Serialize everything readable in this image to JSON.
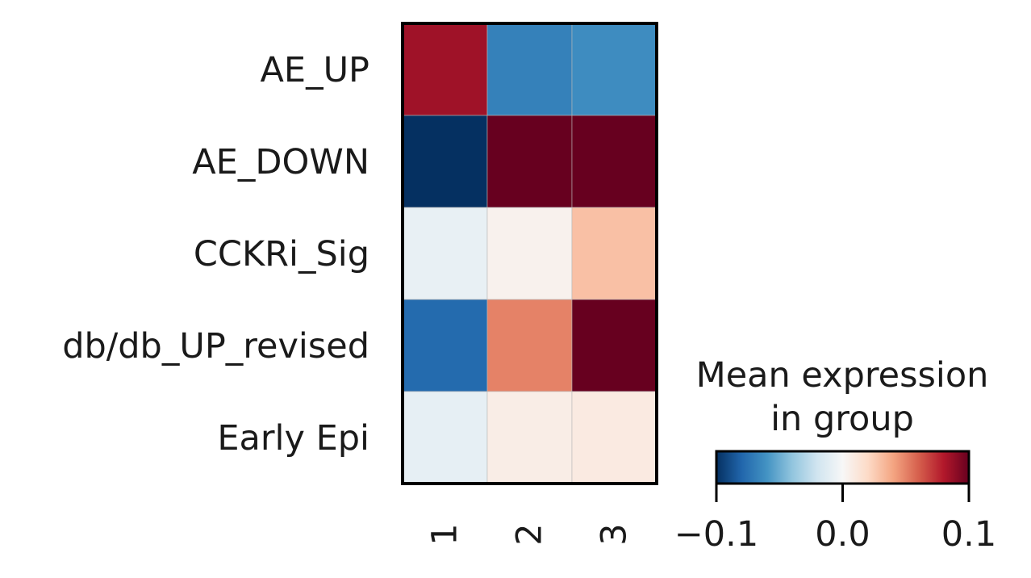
{
  "chart_data": {
    "type": "heatmap",
    "rows": [
      "AE_UP",
      "AE_DOWN",
      "CCKRi_Sig",
      "db/db_UP_revised",
      "Early Epi"
    ],
    "columns": [
      "1",
      "2",
      "3"
    ],
    "values": [
      [
        0.085,
        -0.068,
        -0.063
      ],
      [
        -0.1,
        0.1,
        0.1
      ],
      [
        -0.008,
        0.004,
        0.03
      ],
      [
        -0.078,
        0.05,
        0.1
      ],
      [
        -0.009,
        0.007,
        0.009
      ]
    ],
    "colormap": "RdBu_r",
    "vmin": -0.1,
    "vmax": 0.1,
    "colorbar": {
      "title_line1": "Mean expression",
      "title_line2": "in group",
      "ticks": [
        -0.1,
        0.0,
        0.1
      ],
      "tick_labels": [
        "−0.1",
        "0.0",
        "0.1"
      ]
    }
  }
}
